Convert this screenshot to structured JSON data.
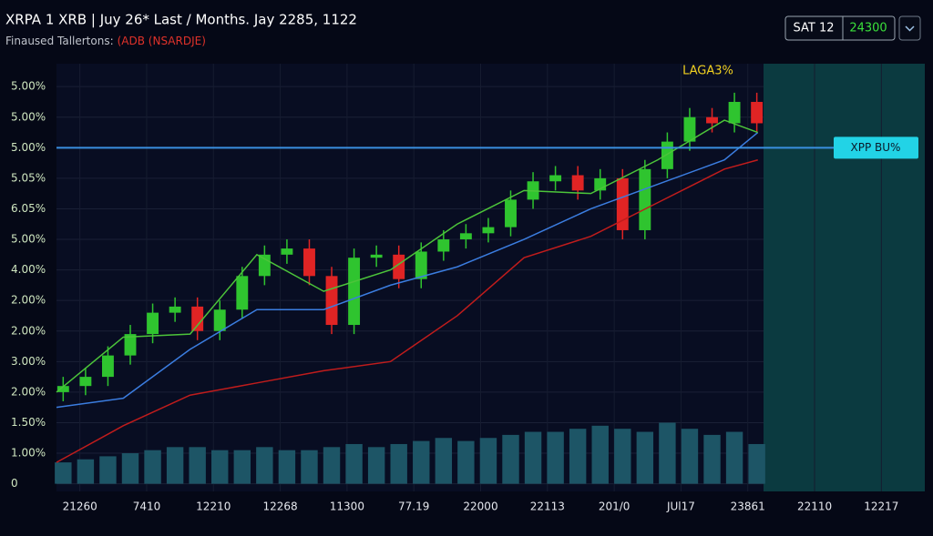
{
  "header": {
    "title": "XRPA 1 XRB  |  Juy 26* Last / Months. Jay 2285, 1122",
    "subtitle": "Finaused Tallertons:",
    "subtitle_highlight": "(ADB (NSARDJE)",
    "badge": "SAT 12",
    "badge_value": "24300"
  },
  "chart_data": {
    "type": "candlestick",
    "x": [
      0.1,
      0.435,
      0.77,
      1.105,
      1.44,
      1.775,
      2.11,
      2.445,
      2.78,
      3.115,
      3.45,
      3.785,
      4.12,
      4.455,
      4.79,
      5.125,
      5.46,
      5.795,
      6.13,
      6.465,
      6.8,
      7.135,
      7.47,
      7.805,
      8.14,
      8.475,
      8.81,
      9.145,
      9.48,
      9.815,
      10.15,
      10.485
    ],
    "open": [
      3.0,
      3.2,
      3.5,
      4.2,
      4.9,
      5.6,
      5.8,
      5.0,
      5.7,
      6.8,
      7.5,
      7.7,
      6.8,
      5.2,
      7.4,
      7.5,
      6.7,
      7.6,
      8.0,
      8.2,
      8.4,
      9.3,
      9.9,
      10.1,
      9.6,
      10.0,
      8.3,
      10.3,
      11.2,
      12.0,
      11.8,
      12.5
    ],
    "high": [
      3.5,
      3.8,
      4.5,
      5.2,
      5.9,
      6.1,
      6.1,
      6.0,
      7.1,
      7.8,
      8.0,
      8.0,
      7.1,
      7.7,
      7.8,
      7.8,
      7.9,
      8.3,
      8.5,
      8.7,
      9.6,
      10.2,
      10.4,
      10.4,
      10.3,
      10.3,
      10.6,
      11.5,
      12.3,
      12.3,
      12.8,
      12.8
    ],
    "low": [
      2.7,
      2.9,
      3.2,
      3.9,
      4.6,
      5.3,
      4.7,
      4.7,
      5.4,
      6.5,
      7.2,
      6.5,
      4.9,
      4.9,
      7.1,
      6.4,
      6.4,
      7.3,
      7.7,
      7.9,
      8.1,
      9.0,
      9.6,
      9.3,
      9.3,
      8.0,
      8.0,
      10.0,
      10.9,
      11.5,
      11.5,
      11.5
    ],
    "close": [
      3.2,
      3.5,
      4.2,
      4.9,
      5.6,
      5.8,
      5.0,
      5.7,
      6.8,
      7.5,
      7.7,
      6.8,
      5.2,
      7.4,
      7.5,
      6.7,
      7.6,
      8.0,
      8.2,
      8.4,
      9.3,
      9.9,
      10.1,
      9.6,
      10.0,
      8.3,
      10.3,
      11.2,
      12.0,
      11.8,
      12.5,
      11.8
    ],
    "up_color": "#2fc42f",
    "down_color": "#e02424",
    "volume": [
      0.7,
      0.8,
      0.9,
      1.0,
      1.1,
      1.2,
      1.2,
      1.1,
      1.1,
      1.2,
      1.1,
      1.1,
      1.2,
      1.3,
      1.2,
      1.3,
      1.4,
      1.5,
      1.4,
      1.5,
      1.6,
      1.7,
      1.7,
      1.8,
      1.9,
      1.8,
      1.7,
      2.0,
      1.8,
      1.6,
      1.7,
      1.3
    ],
    "volume_color": "#1d5566",
    "lines": [
      {
        "color": "#c01c1c",
        "x": [
          0,
          1,
          2,
          3,
          4,
          5,
          6,
          7,
          8,
          9,
          10,
          10.5
        ],
        "values": [
          0.7,
          1.9,
          2.9,
          3.3,
          3.7,
          4.0,
          5.5,
          7.4,
          8.1,
          9.2,
          10.3,
          10.6
        ]
      },
      {
        "color": "#3b7de0",
        "x": [
          0,
          1,
          2,
          3,
          4,
          5,
          6,
          7,
          8,
          9,
          10,
          10.5
        ],
        "values": [
          2.5,
          2.8,
          4.4,
          5.7,
          5.7,
          6.5,
          7.1,
          8.0,
          9.0,
          9.8,
          10.6,
          11.5
        ]
      },
      {
        "color": "#4cc43a",
        "x": [
          0,
          1,
          2,
          3,
          4,
          5,
          6,
          7,
          8,
          9,
          10,
          10.5
        ],
        "values": [
          3.0,
          4.8,
          4.9,
          7.5,
          6.3,
          7.0,
          8.5,
          9.6,
          9.5,
          10.6,
          11.9,
          11.5
        ]
      }
    ],
    "hline": {
      "value": 11,
      "label": "XPP BU%",
      "color": "#3a8fe0"
    },
    "annotation": "LAGA3%",
    "xlim": [
      0,
      13
    ],
    "ylim": [
      -0.25,
      13.75
    ],
    "xticks": [
      {
        "value": 0.35,
        "label": "21260"
      },
      {
        "value": 1.35,
        "label": "7410"
      },
      {
        "value": 2.35,
        "label": "12210"
      },
      {
        "value": 3.35,
        "label": "12268"
      },
      {
        "value": 4.35,
        "label": "11300"
      },
      {
        "value": 5.35,
        "label": "77.19"
      },
      {
        "value": 6.35,
        "label": "22000"
      },
      {
        "value": 7.35,
        "label": "22113"
      },
      {
        "value": 8.35,
        "label": "201/0"
      },
      {
        "value": 9.35,
        "label": "JUl17"
      },
      {
        "value": 10.35,
        "label": "23861"
      },
      {
        "value": 11.35,
        "label": "22110"
      },
      {
        "value": 12.35,
        "label": "12217"
      }
    ],
    "yticks": [
      0,
      {
        "value": 1,
        "label": "1.00%"
      },
      {
        "value": 2,
        "label": "1.50%"
      },
      {
        "value": 3,
        "label": "2.00%"
      },
      {
        "value": 4,
        "label": "3.00%"
      },
      {
        "value": 5,
        "label": "2.00%"
      },
      {
        "value": 6,
        "label": "2.00%"
      },
      {
        "value": 7,
        "label": "4.00%"
      },
      {
        "value": 8,
        "label": "5.00%"
      },
      {
        "value": 9,
        "label": "6.05%"
      },
      {
        "value": 10,
        "label": "5.05%"
      },
      {
        "value": 11,
        "label": "5.00%"
      },
      {
        "value": 12,
        "label": "5.00%"
      },
      {
        "value": 13,
        "label": "5.00%"
      }
    ],
    "grid": true
  }
}
